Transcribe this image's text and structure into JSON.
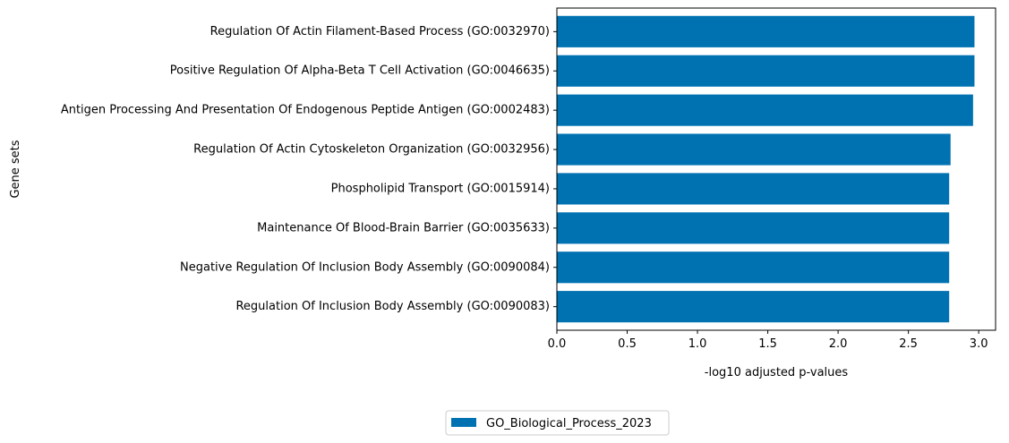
{
  "chart_data": {
    "type": "bar",
    "orientation": "horizontal",
    "categories": [
      "Regulation Of Actin Filament-Based Process (GO:0032970)",
      "Positive Regulation Of Alpha-Beta T Cell Activation (GO:0046635)",
      "Antigen Processing And Presentation Of Endogenous Peptide Antigen (GO:0002483)",
      "Regulation Of Actin Cytoskeleton Organization (GO:0032956)",
      "Phospholipid Transport (GO:0015914)",
      "Maintenance Of Blood-Brain Barrier (GO:0035633)",
      "Negative Regulation Of Inclusion Body Assembly (GO:0090084)",
      "Regulation Of Inclusion Body Assembly (GO:0090083)"
    ],
    "series": [
      {
        "name": "GO_Biological_Process_2023",
        "color": "#0072b2",
        "values": [
          2.97,
          2.97,
          2.96,
          2.8,
          2.79,
          2.79,
          2.79,
          2.79
        ]
      }
    ],
    "xlabel": "-log10 adjusted p-values",
    "ylabel": "Gene sets",
    "xlim": [
      0,
      3.12
    ],
    "xticks": [
      0.0,
      0.5,
      1.0,
      1.5,
      2.0,
      2.5,
      3.0
    ],
    "xtick_labels": [
      "0.0",
      "0.5",
      "1.0",
      "1.5",
      "2.0",
      "2.5",
      "3.0"
    ],
    "grid": false,
    "legend_position": "bottom-center"
  }
}
